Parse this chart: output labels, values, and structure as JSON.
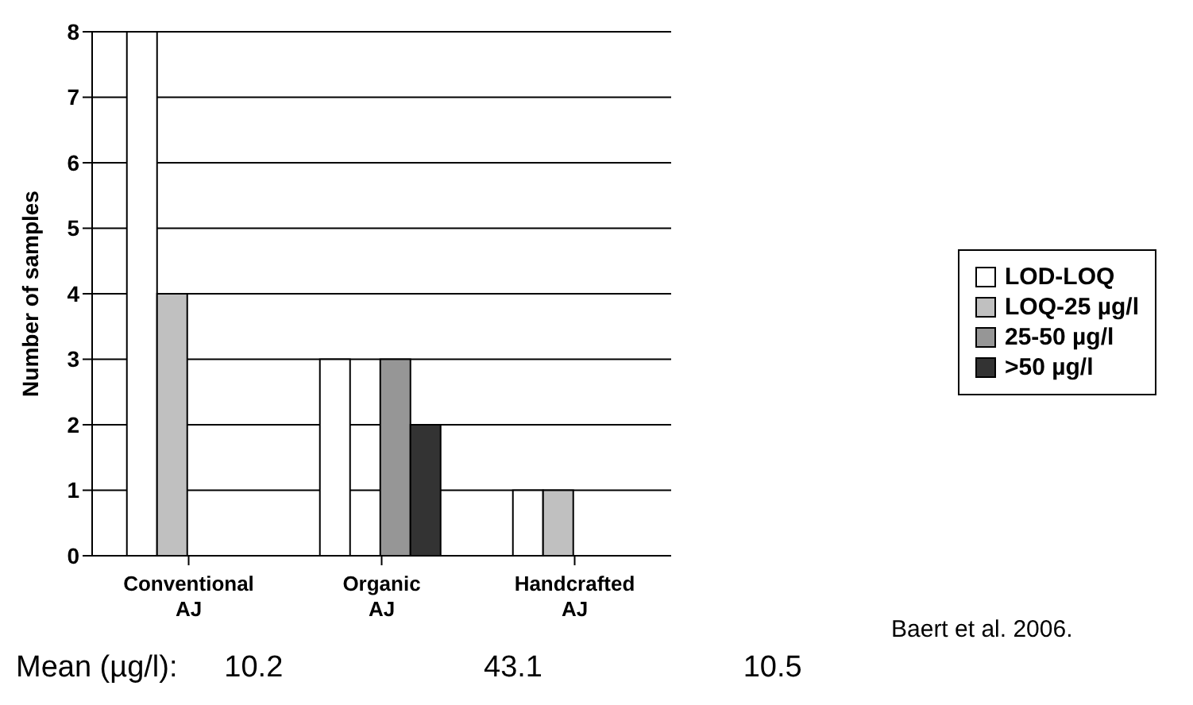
{
  "chart_data": {
    "type": "bar",
    "ylabel": "Number of samples",
    "categories": [
      "Conventional AJ",
      "Organic AJ",
      "Handcrafted AJ"
    ],
    "series": [
      {
        "name": "LOD-LOQ",
        "color": "#ffffff",
        "values": [
          8,
          3,
          1
        ]
      },
      {
        "name": "LOQ-25 µg/l",
        "color": "#c0c0c0",
        "values": [
          4,
          0,
          1
        ]
      },
      {
        "name": "25-50 µg/l",
        "color": "#969696",
        "values": [
          0,
          3,
          0
        ]
      },
      {
        "name": ">50 µg/l",
        "color": "#333333",
        "values": [
          0,
          2,
          0
        ]
      }
    ],
    "ylim": [
      0,
      8
    ],
    "yticks": [
      0,
      1,
      2,
      3,
      4,
      5,
      6,
      7,
      8
    ],
    "grid": "y",
    "legend": "right",
    "annotations": [
      "Baert et al. 2006.",
      "Mean (µg/l):",
      "10.2",
      "43.1",
      "10.5"
    ]
  }
}
